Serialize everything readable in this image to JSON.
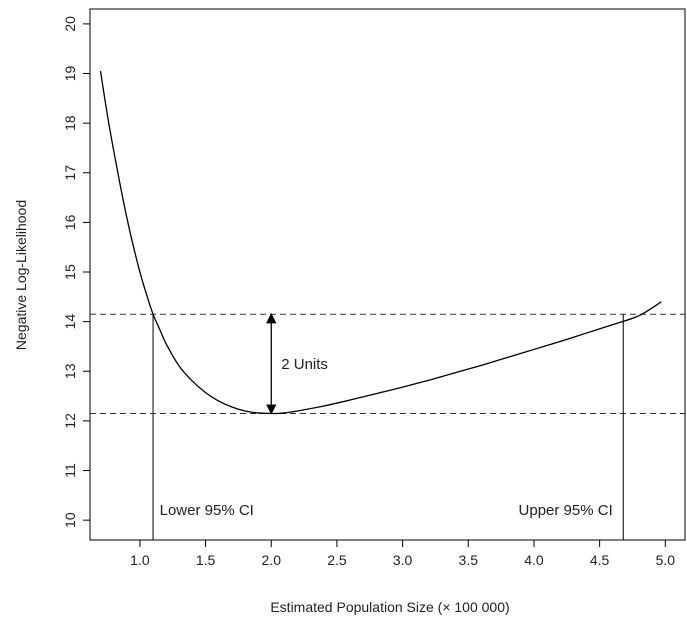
{
  "chart_data": {
    "type": "line",
    "title": "",
    "xlabel": "Estimated Population Size (× 100 000)",
    "ylabel": "Negative Log-Likelihood",
    "xlim": [
      0.62,
      5.15
    ],
    "ylim": [
      9.6,
      20.3
    ],
    "x_ticks": [
      1.0,
      1.5,
      2.0,
      2.5,
      3.0,
      3.5,
      4.0,
      4.5,
      5.0
    ],
    "x_tick_labels": [
      "1.0",
      "1.5",
      "2.0",
      "2.5",
      "3.0",
      "3.5",
      "4.0",
      "4.5",
      "5.0"
    ],
    "y_ticks": [
      10,
      11,
      12,
      13,
      14,
      15,
      16,
      17,
      18,
      19,
      20
    ],
    "y_tick_labels": [
      "10",
      "11",
      "12",
      "13",
      "14",
      "15",
      "16",
      "17",
      "18",
      "19",
      "20"
    ],
    "grid": false,
    "series": [
      {
        "x": [
          0.7,
          0.75,
          0.8,
          0.85,
          0.9,
          0.95,
          1.0,
          1.05,
          1.1,
          1.15,
          1.2,
          1.3,
          1.4,
          1.5,
          1.6,
          1.7,
          1.8,
          1.9,
          2.0,
          2.05,
          2.1,
          2.2,
          2.4,
          2.6,
          2.8,
          3.0,
          3.2,
          3.4,
          3.6,
          3.8,
          4.0,
          4.2,
          4.4,
          4.6,
          4.8,
          4.97
        ],
        "y": [
          19.05,
          18.2,
          17.45,
          16.75,
          16.1,
          15.52,
          15.0,
          14.55,
          14.15,
          13.85,
          13.55,
          13.1,
          12.8,
          12.57,
          12.4,
          12.28,
          12.2,
          12.16,
          12.15,
          12.15,
          12.16,
          12.2,
          12.3,
          12.42,
          12.55,
          12.68,
          12.82,
          12.97,
          13.12,
          13.28,
          13.44,
          13.6,
          13.77,
          13.94,
          14.12,
          14.4
        ]
      }
    ],
    "reference_lines": [
      {
        "orientation": "horizontal",
        "y": 14.15,
        "style": "dashed"
      },
      {
        "orientation": "horizontal",
        "y": 12.15,
        "style": "dashed"
      },
      {
        "orientation": "vertical",
        "x": 1.1,
        "y_from": 9.6,
        "y_to": 14.15
      },
      {
        "orientation": "vertical",
        "x": 4.68,
        "y_from": 9.6,
        "y_to": 14.15
      }
    ],
    "arrow": {
      "x": 2.0,
      "y_from": 12.15,
      "y_to": 14.15,
      "label": "2 Units"
    },
    "annotations": {
      "lower_ci": {
        "text": "Lower 95% CI",
        "x": 1.15,
        "y": 10.2
      },
      "upper_ci": {
        "text": "Upper 95% CI",
        "x": 4.6,
        "y": 10.2
      }
    }
  }
}
